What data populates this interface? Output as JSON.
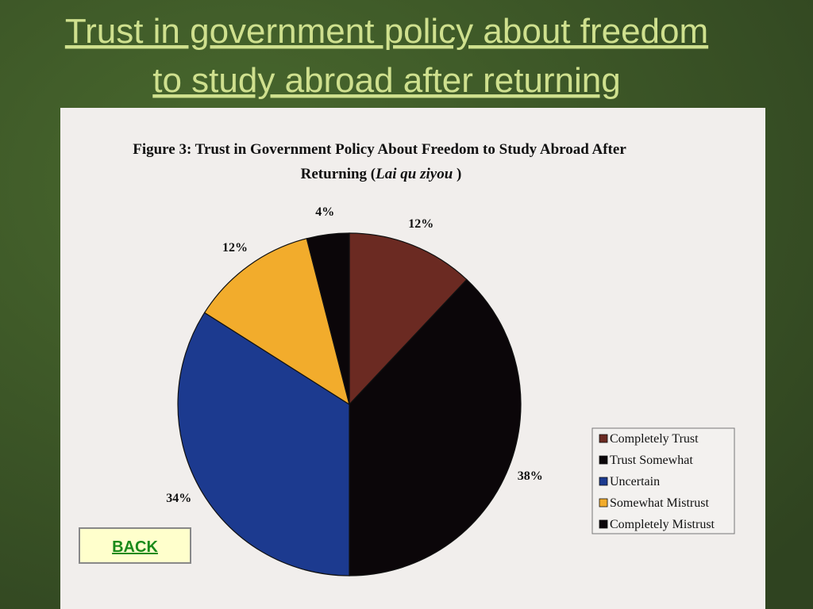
{
  "slide": {
    "title": [
      "Trust in government policy about freedom",
      "to study abroad after returning"
    ],
    "back_button": "BACK"
  },
  "chart_data": {
    "type": "pie",
    "title": [
      "Figure 3: Trust in Government Policy About Freedom to Study Abroad After",
      "Returning (",
      "Lai qu ziyou",
      " )"
    ],
    "categories": [
      "Completely Trust",
      "Trust Somewhat",
      "Uncertain",
      "Somewhat Mistrust",
      "Completely Mistrust"
    ],
    "values": [
      12,
      38,
      34,
      12,
      4
    ],
    "value_labels": [
      "12%",
      "38%",
      "34%",
      "12%",
      "4%"
    ],
    "colors": [
      "#6b2a22",
      "#0b0609",
      "#1c3a8f",
      "#f2ac2c",
      "#0b0609"
    ],
    "legend": "right"
  }
}
